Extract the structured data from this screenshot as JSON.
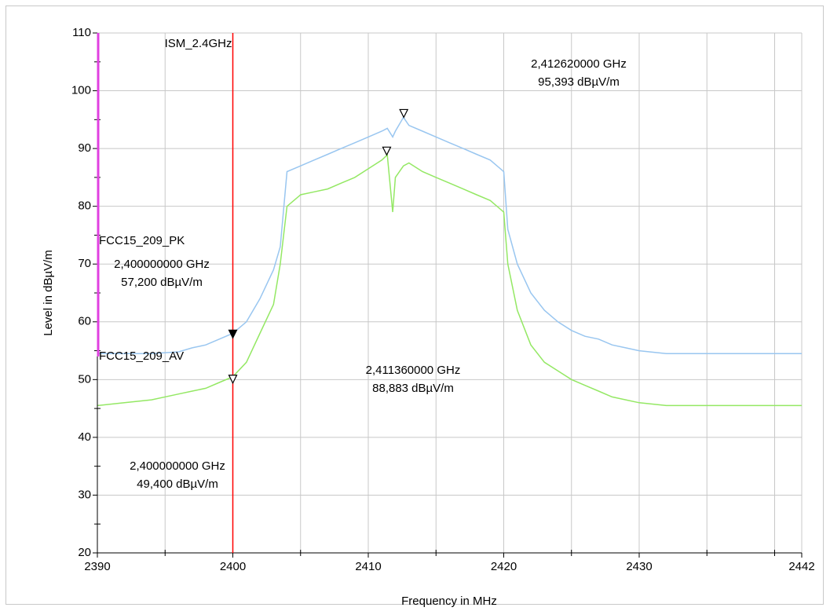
{
  "chart_data": {
    "type": "line",
    "xlabel": "Frequency in MHz",
    "ylabel": "Level in dBµV/m",
    "xlim": [
      2390,
      2442
    ],
    "ylim": [
      20,
      110
    ],
    "xticks": [
      2390,
      2400,
      2410,
      2420,
      2430,
      2442
    ],
    "xminorticks": [
      2395,
      2405,
      2415,
      2425,
      2435,
      2440
    ],
    "yticks": [
      20,
      30,
      40,
      50,
      60,
      70,
      80,
      90,
      100,
      110
    ],
    "yminorticks": [
      25,
      35,
      45,
      55,
      65,
      75,
      85,
      95,
      105
    ],
    "grid": true,
    "x": [
      2390,
      2392,
      2394,
      2396,
      2397,
      2398,
      2399,
      2400,
      2401,
      2402,
      2403,
      2403.5,
      2404,
      2405,
      2406,
      2407,
      2408,
      2409,
      2410,
      2411,
      2411.4,
      2411.8,
      2412,
      2412.6,
      2413,
      2414,
      2415,
      2416,
      2417,
      2418,
      2419,
      2420,
      2420.3,
      2421,
      2422,
      2423,
      2424,
      2425,
      2426,
      2427,
      2428,
      2429,
      2430,
      2432,
      2436,
      2442
    ],
    "series": [
      {
        "color": "#99c6f0",
        "values": [
          54.5,
          54.5,
          54.5,
          54.8,
          55.5,
          56,
          57,
          58,
          60,
          64,
          69,
          73,
          86,
          87,
          88,
          89,
          90,
          91,
          92,
          93,
          93.5,
          92,
          93,
          95.4,
          94,
          93,
          92,
          91,
          90,
          89,
          88,
          86,
          76,
          70,
          65,
          62,
          60,
          58.5,
          57.5,
          57,
          56,
          55.5,
          55,
          54.5,
          54.5,
          54.5
        ]
      },
      {
        "color": "#94e864",
        "values": [
          45.5,
          46,
          46.5,
          47.5,
          48,
          48.5,
          49.5,
          50.5,
          53,
          58,
          63,
          70,
          80,
          82,
          82.5,
          83,
          84,
          85,
          86.5,
          88,
          88.9,
          79,
          85,
          87,
          87.5,
          86,
          85,
          84,
          83,
          82,
          81,
          79,
          70,
          62,
          56,
          53,
          51.5,
          50,
          49,
          48,
          47,
          46.5,
          46,
          45.5,
          45.5,
          45.5
        ]
      }
    ],
    "markers": [
      {
        "x": 2412.62,
        "y": 95.393,
        "label": "2,412620000 GHz",
        "value_label": "95,393 dBµV/m",
        "filled": false
      },
      {
        "x": 2411.36,
        "y": 88.883,
        "label": "2,411360000 GHz",
        "value_label": "88,883 dBµV/m",
        "filled": false
      },
      {
        "x": 2400,
        "y": 57.2,
        "label": "2,400000000 GHz",
        "value_label": "57,200 dBµV/m",
        "filled": true
      },
      {
        "x": 2400,
        "y": 49.4,
        "label": "2,400000000 GHz",
        "value_label": "49,400 dBµV/m",
        "filled": false
      }
    ],
    "vline": {
      "x": 2400,
      "label": "ISM_2.4GHz",
      "color": "#ff0000"
    },
    "limits": [
      {
        "name": "FCC15_209_PK",
        "value": 74,
        "color": "#f05a5a"
      },
      {
        "name": "FCC15_209_AV",
        "value": 54,
        "color": "#e040e0"
      }
    ]
  }
}
